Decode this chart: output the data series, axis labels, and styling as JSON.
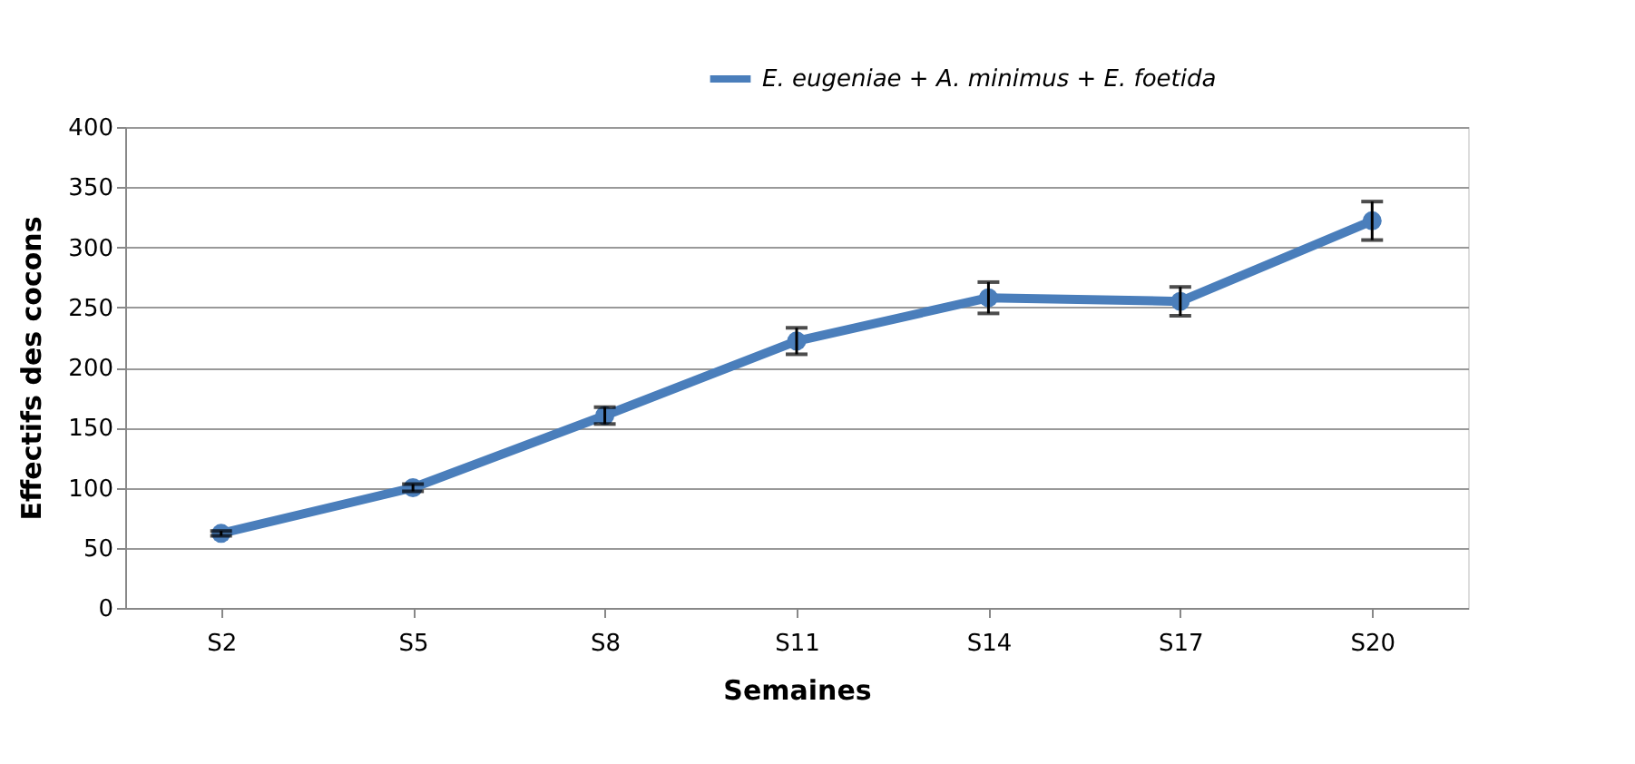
{
  "chart_data": {
    "type": "line",
    "xlabel": "Semaines",
    "ylabel": "Effectifs des cocons",
    "categories": [
      "S2",
      "S5",
      "S8",
      "S11",
      "S14",
      "S17",
      "S20"
    ],
    "series": [
      {
        "name": "E. eugeniae + A. minimus + E. foetida",
        "color": "#4a7ebb",
        "values": [
          62,
          100,
          160,
          222,
          258,
          255,
          322
        ],
        "errors": [
          2,
          3,
          7,
          11,
          13,
          12,
          16
        ]
      }
    ],
    "ylim": [
      0,
      400
    ],
    "yticks": [
      0,
      50,
      100,
      150,
      200,
      250,
      300,
      350,
      400
    ],
    "grid": "y",
    "legend": "top right",
    "marker": "circle",
    "line_style": "solid"
  }
}
